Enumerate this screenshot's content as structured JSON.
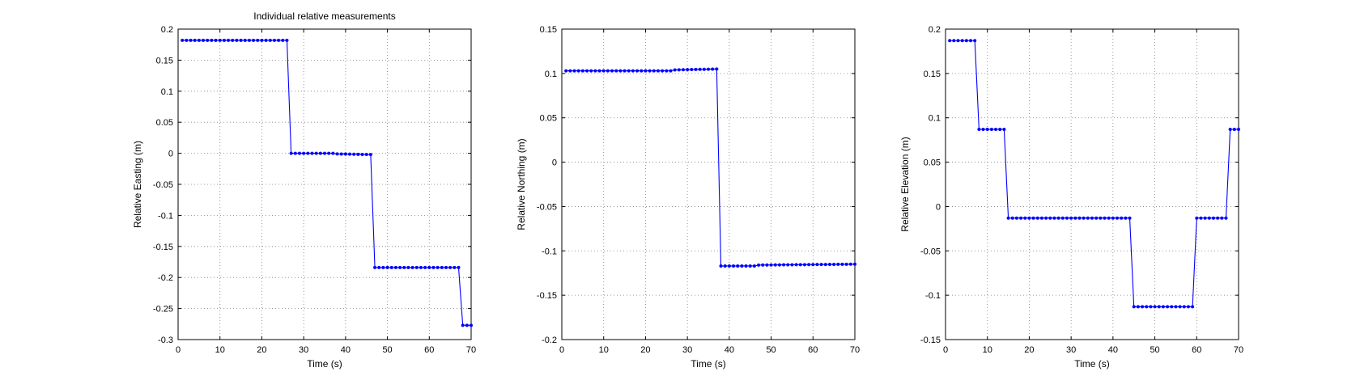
{
  "figure": {
    "title": "Individual relative measurements"
  },
  "chart_data": [
    {
      "type": "line",
      "title": "Individual relative measurements",
      "xlabel": "Time (s)",
      "ylabel": "Relative Easting (m)",
      "xlim": [
        0,
        70
      ],
      "ylim": [
        -0.3,
        0.2
      ],
      "xticks": [
        0,
        10,
        20,
        30,
        40,
        50,
        60,
        70
      ],
      "yticks": [
        -0.3,
        -0.25,
        -0.2,
        -0.15,
        -0.1,
        -0.05,
        0,
        0.05,
        0.1,
        0.15,
        0.2
      ],
      "xtick_labels": [
        "0",
        "10",
        "20",
        "30",
        "40",
        "50",
        "60",
        "70"
      ],
      "ytick_labels": [
        "-0.3",
        "-0.25",
        "-0.2",
        "-0.15",
        "-0.1",
        "-0.05",
        "0",
        "0.05",
        "0.1",
        "0.15",
        "0.2"
      ],
      "grid": true,
      "color": "#0000ff",
      "marker": "dot",
      "segments": [
        {
          "x_start": 1,
          "x_end": 26,
          "y_start": 0.182,
          "y_end": 0.182
        },
        {
          "x_start": 27,
          "x_end": 37,
          "y_start": 0.0,
          "y_end": 0.0
        },
        {
          "x_start": 38,
          "x_end": 46,
          "y_start": -0.001,
          "y_end": -0.002
        },
        {
          "x_start": 47,
          "x_end": 67,
          "y_start": -0.184,
          "y_end": -0.184
        },
        {
          "x_start": 68,
          "x_end": 70,
          "y_start": -0.277,
          "y_end": -0.277
        }
      ]
    },
    {
      "type": "line",
      "title": "",
      "xlabel": "Time (s)",
      "ylabel": "Relative Northing (m)",
      "xlim": [
        0,
        70
      ],
      "ylim": [
        -0.2,
        0.15
      ],
      "xticks": [
        0,
        10,
        20,
        30,
        40,
        50,
        60,
        70
      ],
      "yticks": [
        -0.2,
        -0.15,
        -0.1,
        -0.05,
        0,
        0.05,
        0.1,
        0.15
      ],
      "xtick_labels": [
        "0",
        "10",
        "20",
        "30",
        "40",
        "50",
        "60",
        "70"
      ],
      "ytick_labels": [
        "-0.2",
        "-0.15",
        "-0.1",
        "-0.05",
        "0",
        "0.05",
        "0.1",
        "0.15"
      ],
      "grid": true,
      "color": "#0000ff",
      "marker": "dot",
      "segments": [
        {
          "x_start": 1,
          "x_end": 26,
          "y_start": 0.103,
          "y_end": 0.103
        },
        {
          "x_start": 27,
          "x_end": 37,
          "y_start": 0.104,
          "y_end": 0.105
        },
        {
          "x_start": 38,
          "x_end": 46,
          "y_start": -0.117,
          "y_end": -0.117
        },
        {
          "x_start": 47,
          "x_end": 70,
          "y_start": -0.116,
          "y_end": -0.115
        }
      ]
    },
    {
      "type": "line",
      "title": "",
      "xlabel": "Time (s)",
      "ylabel": "Relative Elevation (m)",
      "xlim": [
        0,
        70
      ],
      "ylim": [
        -0.15,
        0.2
      ],
      "xticks": [
        0,
        10,
        20,
        30,
        40,
        50,
        60,
        70
      ],
      "yticks": [
        -0.15,
        -0.1,
        -0.05,
        0,
        0.05,
        0.1,
        0.15,
        0.2
      ],
      "xtick_labels": [
        "0",
        "10",
        "20",
        "30",
        "40",
        "50",
        "60",
        "70"
      ],
      "ytick_labels": [
        "-0.15",
        "-0.1",
        "-0.05",
        "0",
        "0.05",
        "0.1",
        "0.15",
        "0.2"
      ],
      "grid": true,
      "color": "#0000ff",
      "marker": "dot",
      "segments": [
        {
          "x_start": 1,
          "x_end": 7,
          "y_start": 0.187,
          "y_end": 0.187
        },
        {
          "x_start": 8,
          "x_end": 14,
          "y_start": 0.087,
          "y_end": 0.087
        },
        {
          "x_start": 15,
          "x_end": 44,
          "y_start": -0.013,
          "y_end": -0.013
        },
        {
          "x_start": 45,
          "x_end": 59,
          "y_start": -0.113,
          "y_end": -0.113
        },
        {
          "x_start": 60,
          "x_end": 67,
          "y_start": -0.013,
          "y_end": -0.013
        },
        {
          "x_start": 68,
          "x_end": 70,
          "y_start": 0.087,
          "y_end": 0.087
        }
      ]
    }
  ]
}
